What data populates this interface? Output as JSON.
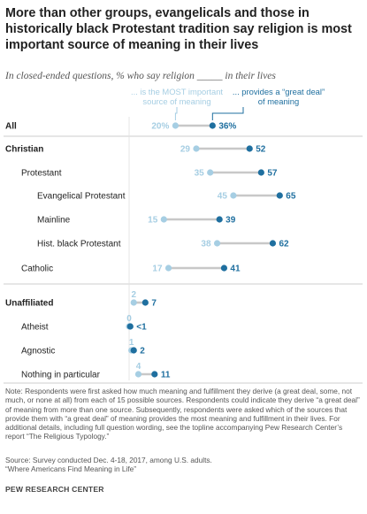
{
  "chart_data": {
    "type": "dot",
    "title": "More than other groups, evangelicals and those in historically black Protestant tradition say religion is most important source of meaning in their lives",
    "subtitle": "In closed-ended questions, % who say religion _____ in their lives",
    "legend": {
      "most_important": "... is the MOST important source of meaning",
      "great_deal": "... provides a “great deal” of meaning"
    },
    "series": [
      {
        "name": "... is the MOST important source of meaning",
        "key": "most_important",
        "color": "#a6cee3"
      },
      {
        "name": "... provides a “great deal” of meaning",
        "key": "great_deal",
        "color": "#1f6f9f"
      }
    ],
    "categories": [
      "All",
      "Christian",
      "Protestant",
      "Evangelical Protestant",
      "Mainline",
      "Hist. black Protestant",
      "Catholic",
      "Unaffiliated",
      "Atheist",
      "Agnostic",
      "Nothing in particular"
    ],
    "rows": [
      {
        "label": "All",
        "bold": true,
        "indent": 0,
        "most_important": 20,
        "great_deal": 36,
        "most_label": "20%",
        "great_label": "36%"
      },
      {
        "label": "Christian",
        "bold": true,
        "indent": 0,
        "most_important": 29,
        "great_deal": 52,
        "most_label": "29",
        "great_label": "52"
      },
      {
        "label": "Protestant",
        "bold": false,
        "indent": 1,
        "most_important": 35,
        "great_deal": 57,
        "most_label": "35",
        "great_label": "57"
      },
      {
        "label": "Evangelical Protestant",
        "bold": false,
        "indent": 2,
        "most_important": 45,
        "great_deal": 65,
        "most_label": "45",
        "great_label": "65"
      },
      {
        "label": "Mainline",
        "bold": false,
        "indent": 2,
        "most_important": 15,
        "great_deal": 39,
        "most_label": "15",
        "great_label": "39"
      },
      {
        "label": "Hist. black Protestant",
        "bold": false,
        "indent": 2,
        "most_important": 38,
        "great_deal": 62,
        "most_label": "38",
        "great_label": "62"
      },
      {
        "label": "Catholic",
        "bold": false,
        "indent": 1,
        "most_important": 17,
        "great_deal": 41,
        "most_label": "17",
        "great_label": "41"
      },
      {
        "label": "Unaffiliated",
        "bold": true,
        "indent": 0,
        "most_important": 2,
        "great_deal": 7,
        "most_label": "2",
        "great_label": "7"
      },
      {
        "label": "Atheist",
        "bold": false,
        "indent": 1,
        "most_important": 0,
        "great_deal": 0.5,
        "most_label": "0",
        "great_label": "<1"
      },
      {
        "label": "Agnostic",
        "bold": false,
        "indent": 1,
        "most_important": 1,
        "great_deal": 2,
        "most_label": "1",
        "great_label": "2"
      },
      {
        "label": "Nothing in particular",
        "bold": false,
        "indent": 1,
        "most_important": 4,
        "great_deal": 11,
        "most_label": "4",
        "great_label": "11"
      }
    ],
    "xlim": [
      0,
      70
    ]
  },
  "notes": {
    "note": "Note: Respondents were first asked how much meaning and fulfillment they derive (a great deal, some, not much, or none at all) from each of 15 possible sources. Respondents could indicate they derive “a great deal” of meaning from more than one source. Subsequently, respondents were asked which of the sources that provide them with “a great deal” of meaning provides the most meaning and fulfillment in their lives. For additional details, including full question wording, see the topline accompanying Pew Research Center’s report “The Religious Typology.”",
    "source": "Source: Survey conducted Dec. 4-18, 2017, among U.S. adults.",
    "report": "“Where Americans Find Meaning in Life”",
    "credit": "PEW RESEARCH CENTER"
  },
  "colors": {
    "light_dot": "#a6cee3",
    "dark_dot": "#1f6f9f",
    "connector": "#c8c8c8",
    "divider": "#bdbdbd"
  }
}
